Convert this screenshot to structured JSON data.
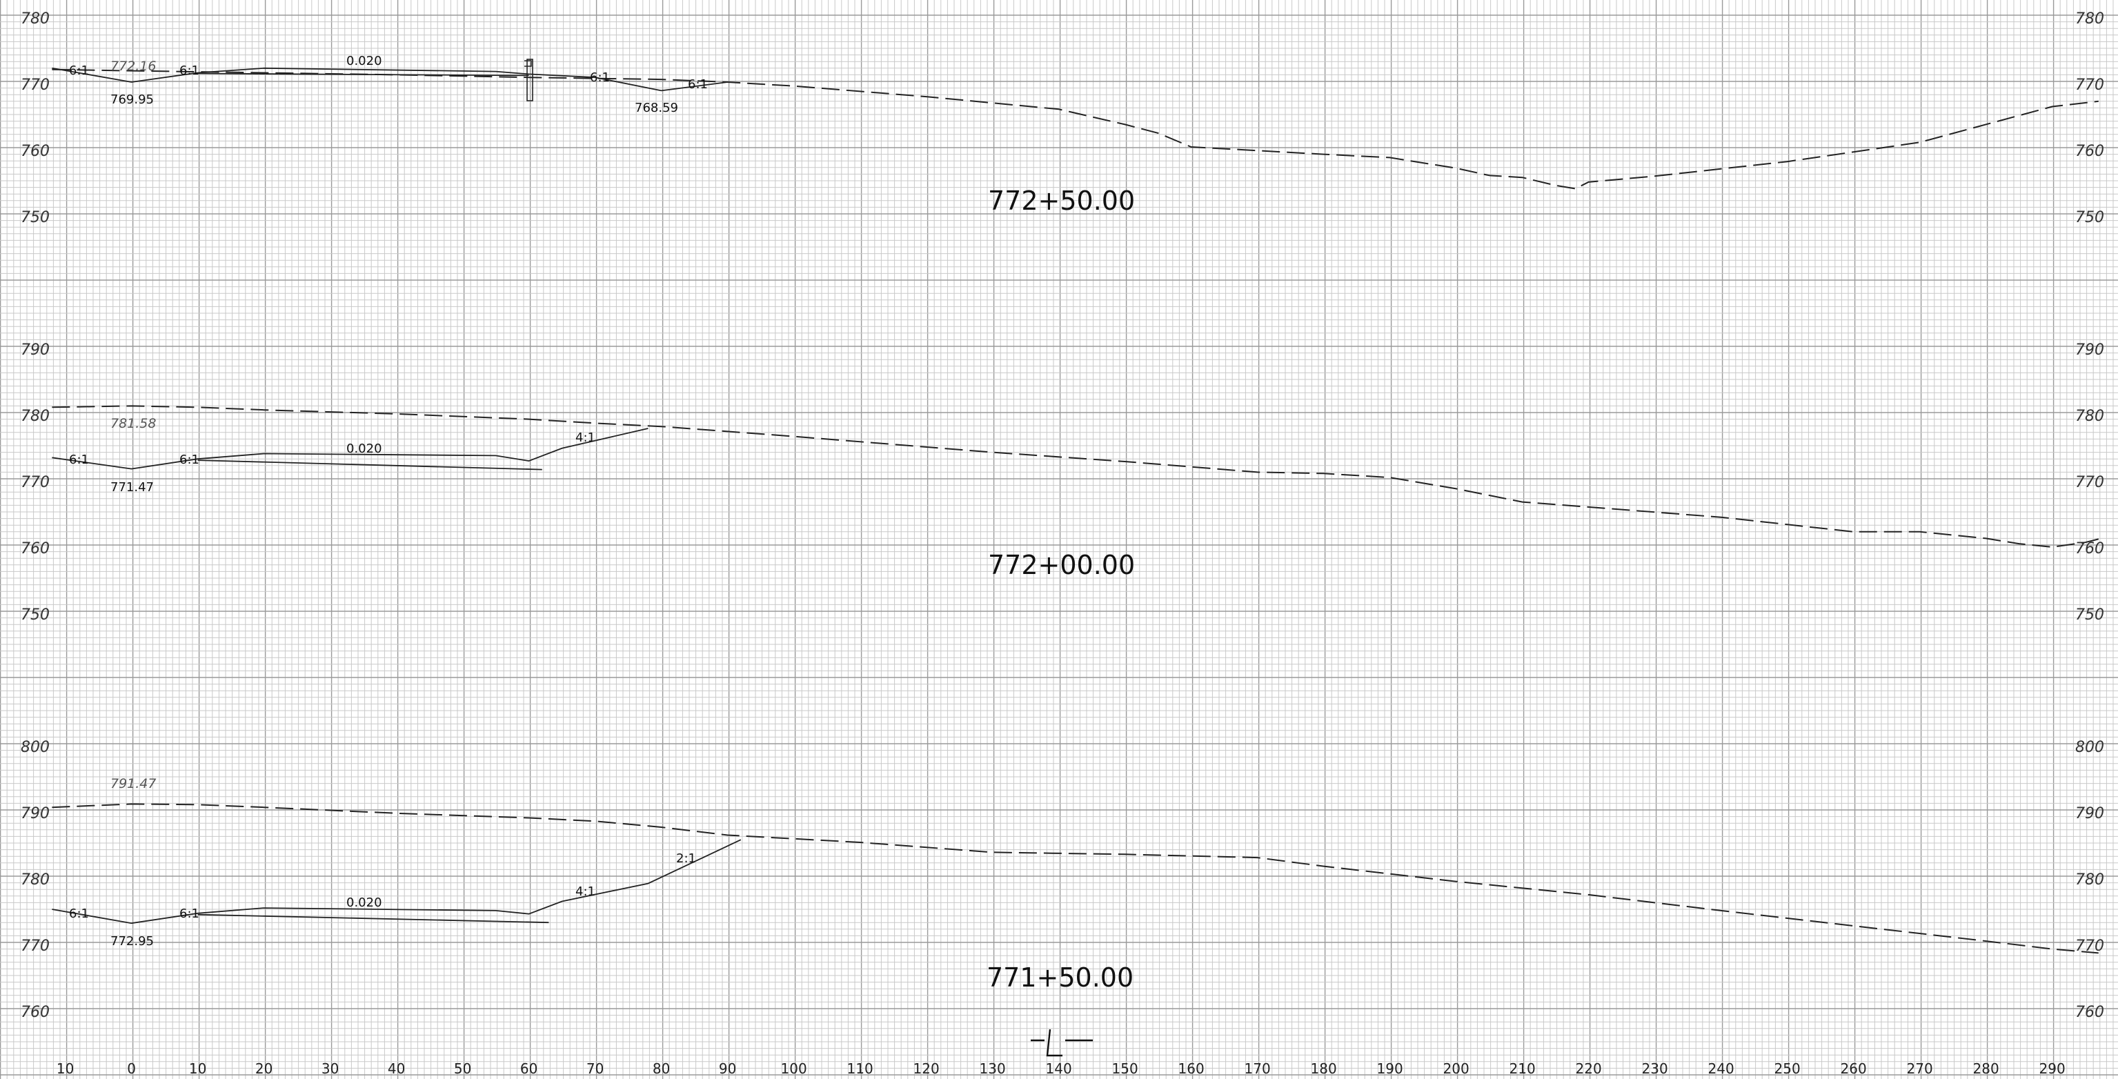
{
  "sheet": {
    "offset_labels": [
      "10",
      "0",
      "10",
      "20",
      "30",
      "40",
      "50",
      "60",
      "70",
      "80",
      "90",
      "100",
      "110",
      "120",
      "130",
      "140",
      "150",
      "160",
      "170",
      "180",
      "190",
      "200",
      "210",
      "220",
      "230",
      "240",
      "250",
      "260",
      "270",
      "280",
      "290"
    ],
    "centerline_symbol": "CL"
  },
  "sections": [
    {
      "station": "772+50.00",
      "elevation_labels": [
        "780",
        "770",
        "760",
        "750"
      ],
      "existing_ground_elev": "772.16",
      "left_low_elev": "769.95",
      "right_low_elev": "768.59",
      "cross_slope": "0.020",
      "slope_labels": [
        "6:1",
        "6:1",
        "6:1",
        "6:1"
      ],
      "ground_profile": [
        [
          -12,
          771.8
        ],
        [
          0,
          771.6
        ],
        [
          20,
          771.3
        ],
        [
          40,
          771.0
        ],
        [
          60,
          770.6
        ],
        [
          80,
          770.3
        ],
        [
          90,
          769.9
        ],
        [
          100,
          769.3
        ],
        [
          120,
          767.7
        ],
        [
          140,
          765.8
        ],
        [
          150,
          763.5
        ],
        [
          155,
          762.2
        ],
        [
          160,
          760.1
        ],
        [
          180,
          759.0
        ],
        [
          190,
          758.5
        ],
        [
          200,
          756.9
        ],
        [
          205,
          755.8
        ],
        [
          210,
          755.5
        ],
        [
          215,
          754.3
        ],
        [
          218,
          753.8
        ],
        [
          220,
          754.8
        ],
        [
          230,
          755.7
        ],
        [
          250,
          757.9
        ],
        [
          270,
          760.8
        ],
        [
          290,
          766.2
        ],
        [
          297,
          767.0
        ]
      ],
      "design_profile": [
        [
          -12,
          772.0
        ],
        [
          0,
          769.9
        ],
        [
          10,
          771.3
        ],
        [
          20,
          772.0
        ],
        [
          55,
          771.5
        ],
        [
          60,
          771.1
        ],
        [
          70,
          770.6
        ],
        [
          80,
          768.6
        ],
        [
          90,
          769.9
        ]
      ],
      "design_lower": [
        [
          10,
          771.2
        ],
        [
          60,
          770.9
        ]
      ]
    },
    {
      "station": "772+00.00",
      "elevation_labels": [
        "790",
        "780",
        "770",
        "760",
        "750"
      ],
      "existing_ground_elev": "781.58",
      "left_low_elev": "771.47",
      "cross_slope": "0.020",
      "slope_labels": [
        "6:1",
        "6:1",
        "4:1"
      ],
      "ground_profile": [
        [
          -12,
          780.8
        ],
        [
          0,
          781.0
        ],
        [
          10,
          780.8
        ],
        [
          20,
          780.4
        ],
        [
          40,
          779.8
        ],
        [
          60,
          779.0
        ],
        [
          70,
          778.4
        ],
        [
          80,
          777.9
        ],
        [
          100,
          776.4
        ],
        [
          130,
          774.0
        ],
        [
          150,
          772.6
        ],
        [
          170,
          771.0
        ],
        [
          180,
          770.8
        ],
        [
          190,
          770.2
        ],
        [
          200,
          768.5
        ],
        [
          210,
          766.5
        ],
        [
          240,
          764.2
        ],
        [
          260,
          762.0
        ],
        [
          270,
          762.0
        ],
        [
          280,
          761.0
        ],
        [
          285,
          760.2
        ],
        [
          290,
          759.7
        ],
        [
          295,
          760.4
        ],
        [
          297,
          760.9
        ]
      ],
      "design_profile": [
        [
          -12,
          773.2
        ],
        [
          0,
          771.5
        ],
        [
          10,
          773.0
        ],
        [
          20,
          773.8
        ],
        [
          55,
          773.5
        ],
        [
          60,
          772.7
        ],
        [
          65,
          774.6
        ],
        [
          78,
          777.6
        ]
      ],
      "design_lower": [
        [
          10,
          772.8
        ],
        [
          62,
          771.4
        ]
      ]
    },
    {
      "station": "771+50.00",
      "elevation_labels": [
        "800",
        "790",
        "780",
        "770",
        "760"
      ],
      "existing_ground_elev": "791.47",
      "left_low_elev": "772.95",
      "cross_slope": "0.020",
      "slope_labels": [
        "6:1",
        "6:1",
        "4:1",
        "2:1"
      ],
      "ground_profile": [
        [
          -12,
          790.4
        ],
        [
          0,
          790.9
        ],
        [
          10,
          790.8
        ],
        [
          20,
          790.4
        ],
        [
          40,
          789.5
        ],
        [
          60,
          788.8
        ],
        [
          70,
          788.3
        ],
        [
          80,
          787.4
        ],
        [
          90,
          786.2
        ],
        [
          110,
          785.1
        ],
        [
          130,
          783.6
        ],
        [
          150,
          783.3
        ],
        [
          170,
          782.8
        ],
        [
          180,
          781.5
        ],
        [
          200,
          779.2
        ],
        [
          220,
          777.2
        ],
        [
          240,
          774.8
        ],
        [
          260,
          772.5
        ],
        [
          280,
          770.2
        ],
        [
          290,
          769.0
        ],
        [
          297,
          768.4
        ]
      ],
      "design_profile": [
        [
          -12,
          775.0
        ],
        [
          0,
          772.9
        ],
        [
          10,
          774.4
        ],
        [
          20,
          775.2
        ],
        [
          55,
          774.8
        ],
        [
          60,
          774.3
        ],
        [
          65,
          776.2
        ],
        [
          78,
          778.9
        ],
        [
          92,
          785.5
        ]
      ],
      "design_lower": [
        [
          10,
          774.2
        ],
        [
          63,
          773.0
        ]
      ]
    }
  ]
}
